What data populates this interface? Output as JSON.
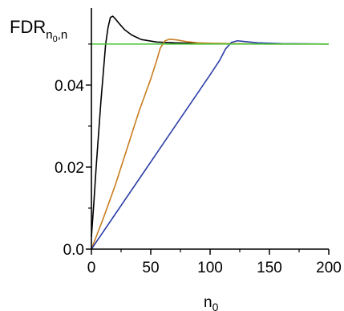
{
  "chart_data": {
    "type": "line",
    "ylabel": {
      "main": "FDR",
      "subscript_parts": [
        "n",
        "0",
        ",n"
      ]
    },
    "xlabel": {
      "main": "n",
      "subscript": "0"
    },
    "xlim": [
      0,
      200
    ],
    "ylim": [
      0,
      0.058
    ],
    "x_ticks": [
      {
        "value": 0,
        "label": "0"
      },
      {
        "value": 50,
        "label": "50"
      },
      {
        "value": 100,
        "label": "100"
      },
      {
        "value": 150,
        "label": "150"
      },
      {
        "value": 200,
        "label": "200"
      }
    ],
    "x_minor_ticks": [
      25,
      75,
      125,
      175
    ],
    "y_ticks": [
      {
        "value": 0,
        "label": "0.0"
      },
      {
        "value": 0.02,
        "label": "0.02"
      },
      {
        "value": 0.04,
        "label": "0.04"
      }
    ],
    "y_minor_ticks": [
      0.01,
      0.03,
      0.05
    ],
    "grid": false,
    "series": [
      {
        "color": "#000000",
        "points": [
          [
            0,
            0.003
          ],
          [
            2,
            0.011
          ],
          [
            4,
            0.02
          ],
          [
            6,
            0.028
          ],
          [
            8,
            0.036
          ],
          [
            10,
            0.043
          ],
          [
            12,
            0.05
          ],
          [
            14,
            0.054
          ],
          [
            16,
            0.0565
          ],
          [
            18,
            0.0568
          ],
          [
            20,
            0.0562
          ],
          [
            24,
            0.0548
          ],
          [
            28,
            0.0535
          ],
          [
            34,
            0.0522
          ],
          [
            42,
            0.0511
          ],
          [
            55,
            0.0505
          ],
          [
            70,
            0.0503
          ],
          [
            85,
            0.0502
          ],
          [
            100,
            0.0502
          ]
        ]
      },
      {
        "color": "#c87d20",
        "points": [
          [
            0,
            0.0
          ],
          [
            10,
            0.0075
          ],
          [
            20,
            0.0155
          ],
          [
            30,
            0.0245
          ],
          [
            40,
            0.0335
          ],
          [
            50,
            0.0415
          ],
          [
            55,
            0.046
          ],
          [
            58,
            0.049
          ],
          [
            62,
            0.0508
          ],
          [
            66,
            0.0512
          ],
          [
            72,
            0.051
          ],
          [
            80,
            0.0506
          ],
          [
            90,
            0.0503
          ],
          [
            100,
            0.0502
          ],
          [
            120,
            0.0501
          ],
          [
            150,
            0.05
          ],
          [
            200,
            0.05
          ]
        ]
      },
      {
        "color": "#2b3ea8",
        "points": [
          [
            0,
            0.0
          ],
          [
            20,
            0.0085
          ],
          [
            40,
            0.017
          ],
          [
            60,
            0.0255
          ],
          [
            80,
            0.034
          ],
          [
            100,
            0.0425
          ],
          [
            108,
            0.046
          ],
          [
            113,
            0.0488
          ],
          [
            118,
            0.0504
          ],
          [
            123,
            0.0508
          ],
          [
            130,
            0.0506
          ],
          [
            140,
            0.0503
          ],
          [
            160,
            0.0501
          ],
          [
            200,
            0.05
          ]
        ]
      },
      {
        "color": "#4cc83a",
        "points": [
          [
            0,
            0.05
          ],
          [
            200,
            0.05
          ]
        ]
      }
    ]
  }
}
